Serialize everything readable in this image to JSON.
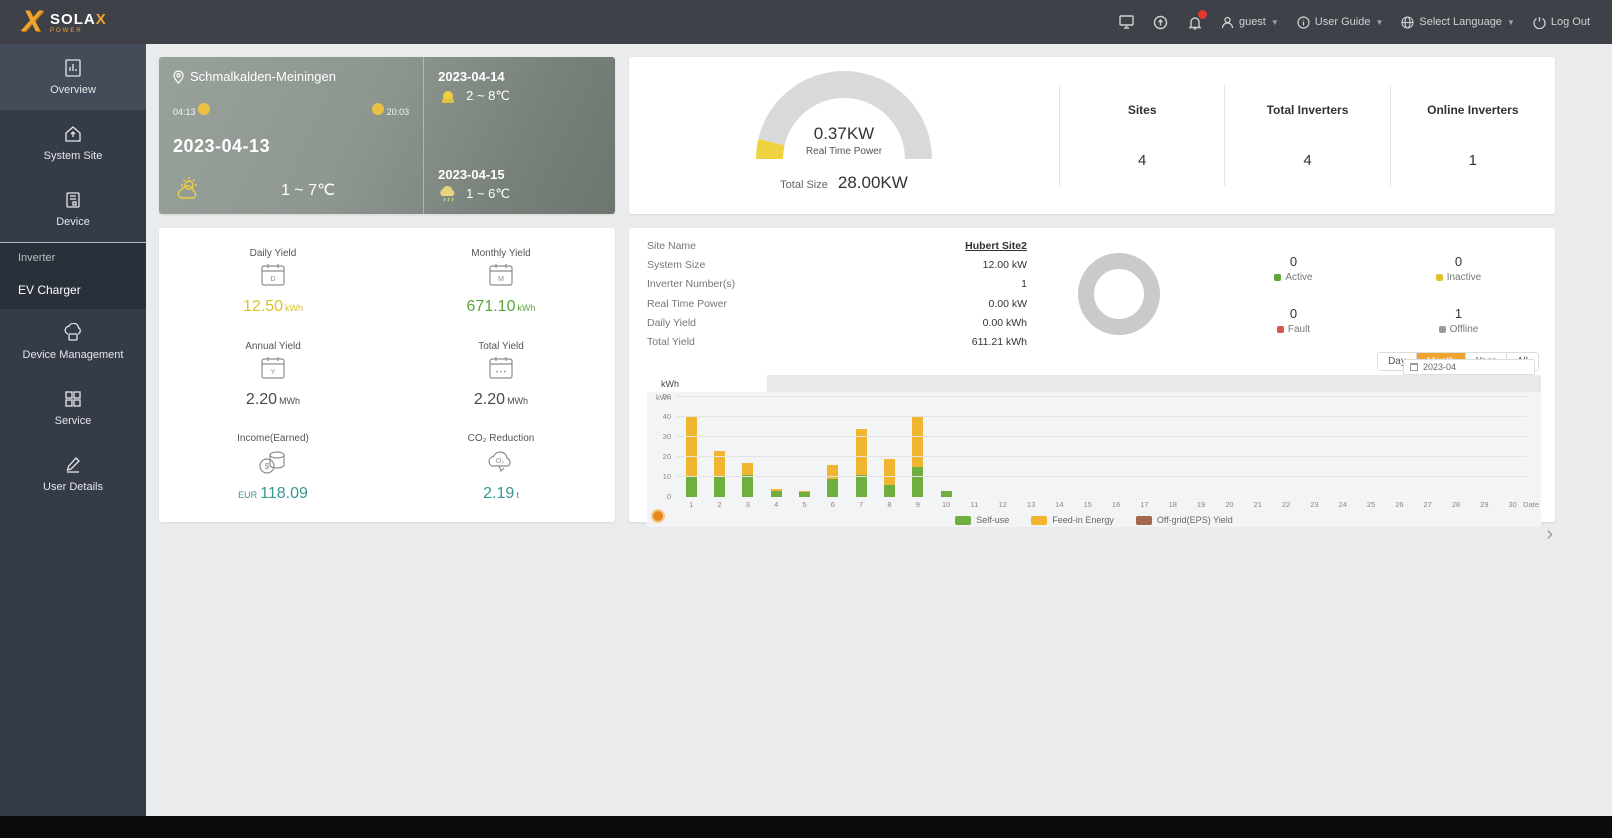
{
  "navbar": {
    "brand": {
      "name": "SOLA",
      "x": "X",
      "sub": "POWER"
    },
    "user_label": "guest",
    "user_guide_label": "User Guide",
    "language_label": "Select Language",
    "logout_label": "Log Out"
  },
  "sidebar": {
    "items": [
      {
        "label": "Overview"
      },
      {
        "label": "System Site"
      },
      {
        "label": "Device"
      },
      {
        "label": "Device Management"
      },
      {
        "label": "Service"
      },
      {
        "label": "User Details"
      }
    ],
    "device_submenu": [
      {
        "label": "Inverter"
      },
      {
        "label": "EV Charger"
      }
    ]
  },
  "weather": {
    "location": "Schmalkalden-Meiningen",
    "today_date": "2023-04-13",
    "today_temp": "1 ~ 7℃",
    "sunrise": "04:13",
    "sunset": "20:03",
    "forecast": [
      {
        "date": "2023-04-14",
        "temp": "2 ~ 8℃"
      },
      {
        "date": "2023-04-15",
        "temp": "1 ~ 6℃"
      }
    ]
  },
  "power_card": {
    "real_time_power": "0.37KW",
    "real_time_label": "Real Time Power",
    "total_size_label": "Total Size",
    "total_size": "28.00KW",
    "gauge_colors": {
      "track": "#d9d9d9",
      "fill": "#eed23f"
    },
    "stats": [
      {
        "label": "Sites",
        "value": "4"
      },
      {
        "label": "Total Inverters",
        "value": "4"
      },
      {
        "label": "Online Inverters",
        "value": "1"
      }
    ]
  },
  "yield_card": {
    "items": [
      {
        "label": "Daily Yield",
        "value": "12.50",
        "unit": "kWh",
        "currency": "",
        "color": "#d9c32a",
        "icon": "calendar-day-icon"
      },
      {
        "label": "Monthly Yield",
        "value": "671.10",
        "unit": "kWh",
        "currency": "",
        "color": "#5ca63c",
        "icon": "calendar-month-icon"
      },
      {
        "label": "Annual Yield",
        "value": "2.20",
        "unit": "MWh",
        "currency": "",
        "color": "#4a4a4a",
        "icon": "calendar-year-icon"
      },
      {
        "label": "Total Yield",
        "value": "2.20",
        "unit": "MWh",
        "currency": "",
        "color": "#4a4a4a",
        "icon": "calendar-total-icon"
      },
      {
        "label": "Income(Earned)",
        "value": "118.09",
        "unit": "",
        "currency": "EUR",
        "color": "#38998f",
        "icon": "coins-icon"
      },
      {
        "label": "CO₂ Reduction",
        "value": "2.19",
        "unit": "t",
        "currency": "",
        "color": "#38998f",
        "icon": "co2-cloud-icon"
      }
    ]
  },
  "site_card": {
    "info": [
      {
        "label": "Site Name",
        "value": "Hubert Site2"
      },
      {
        "label": "System Size",
        "value": "12.00 kW"
      },
      {
        "label": "Inverter Number(s)",
        "value": "1"
      },
      {
        "label": "Real Time Power",
        "value": "0.00 kW"
      },
      {
        "label": "Daily Yield",
        "value": "0.00 kWh"
      },
      {
        "label": "Total Yield",
        "value": "611.21 kWh"
      }
    ],
    "donut_color": "#c8cacc",
    "status": [
      {
        "label": "Active",
        "value": "0",
        "color": "#5ca63c"
      },
      {
        "label": "Inactive",
        "value": "0",
        "color": "#e5c02e"
      },
      {
        "label": "Fault",
        "value": "0",
        "color": "#d9534f"
      },
      {
        "label": "Offline",
        "value": "1",
        "color": "#9a9a9a"
      }
    ],
    "range_buttons": [
      {
        "label": "Day",
        "active": false
      },
      {
        "label": "Month",
        "active": true
      },
      {
        "label": "Year",
        "active": false
      },
      {
        "label": "All",
        "active": false
      }
    ],
    "date_value": "2023-04",
    "tab_label": "kWh"
  },
  "chart_data": {
    "type": "bar",
    "stacked": true,
    "x": [
      "1",
      "2",
      "3",
      "4",
      "5",
      "6",
      "7",
      "8",
      "9",
      "10",
      "11",
      "12",
      "13",
      "14",
      "15",
      "16",
      "17",
      "18",
      "19",
      "20",
      "21",
      "22",
      "23",
      "24",
      "25",
      "26",
      "27",
      "28",
      "29",
      "30"
    ],
    "xlabel": "Date",
    "ylabel": "kWh",
    "ylim": [
      0,
      50
    ],
    "yticks": [
      0,
      10,
      20,
      30,
      40,
      50
    ],
    "grid": true,
    "legend_position": "bottom",
    "series": [
      {
        "name": "Self-use",
        "color": "#6fae3f",
        "values": [
          10,
          10,
          11,
          3,
          2.5,
          9,
          11,
          6,
          15,
          3,
          0,
          0,
          0,
          0,
          0,
          0,
          0,
          0,
          0,
          0,
          0,
          0,
          0,
          0,
          0,
          0,
          0,
          0,
          0,
          0
        ]
      },
      {
        "name": "Feed-in Energy",
        "color": "#f0b62f",
        "values": [
          30,
          13,
          6,
          1,
          0.5,
          7,
          23,
          13,
          25,
          0,
          0,
          0,
          0,
          0,
          0,
          0,
          0,
          0,
          0,
          0,
          0,
          0,
          0,
          0,
          0,
          0,
          0,
          0,
          0,
          0
        ]
      },
      {
        "name": "Off-grid(EPS) Yield",
        "color": "#a2674d",
        "values": [
          0,
          0,
          0,
          0,
          0,
          0,
          0,
          0,
          0,
          0,
          0,
          0,
          0,
          0,
          0,
          0,
          0,
          0,
          0,
          0,
          0,
          0,
          0,
          0,
          0,
          0,
          0,
          0,
          0,
          0
        ]
      }
    ]
  }
}
